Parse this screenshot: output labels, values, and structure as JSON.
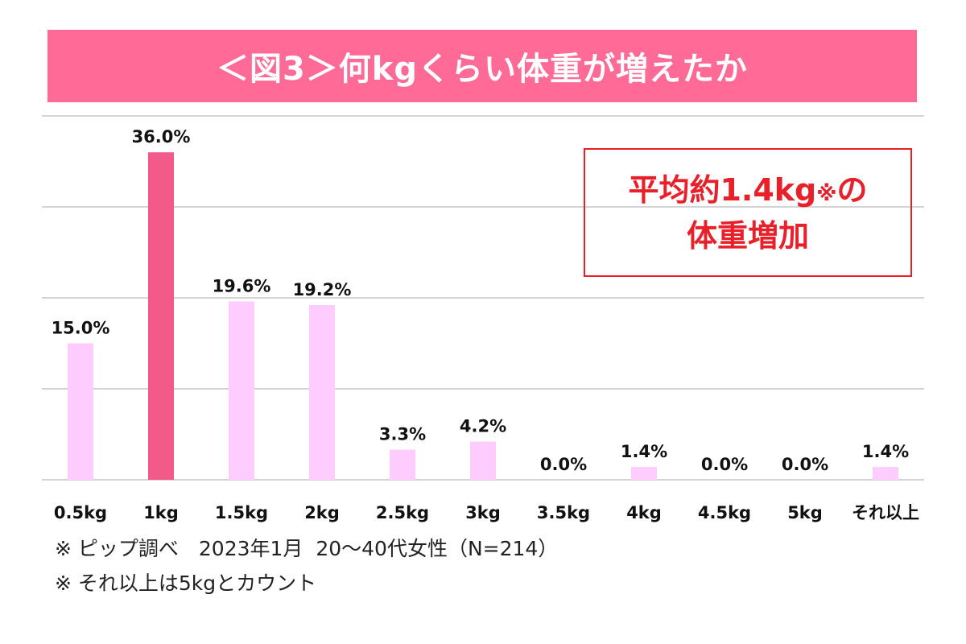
{
  "colors": {
    "banner": "#ff6b96",
    "bar_normal": "#ffccff",
    "bar_highlight": "#f25a8a",
    "grid": "#d4d4d4",
    "callout": "#e8202a"
  },
  "chart_data": {
    "type": "bar",
    "title": "＜図3＞何kgくらい体重が増えたか",
    "categories": [
      "0.5kg",
      "1kg",
      "1.5kg",
      "2kg",
      "2.5kg",
      "3kg",
      "3.5kg",
      "4kg",
      "4.5kg",
      "5kg",
      "それ以上"
    ],
    "values": [
      15.0,
      36.0,
      19.6,
      19.2,
      3.3,
      4.2,
      0.0,
      1.4,
      0.0,
      0.0,
      1.4
    ],
    "value_labels": [
      "15.0%",
      "36.0%",
      "19.6%",
      "19.2%",
      "3.3%",
      "4.2%",
      "0.0%",
      "1.4%",
      "0.0%",
      "0.0%",
      "1.4%"
    ],
    "highlight_index": 1,
    "ylim": [
      0,
      40
    ],
    "grid": true,
    "xlabel": "",
    "ylabel": ""
  },
  "callout": {
    "line1_main": "平均約1.4kg",
    "line1_mark": "※",
    "line1_end": "の",
    "line2": "体重増加"
  },
  "footnotes": {
    "line1": "※ ピップ調べ　2023年1月  20〜40代女性（N=214）",
    "line2": "※ それ以上は5kgとカウント"
  }
}
